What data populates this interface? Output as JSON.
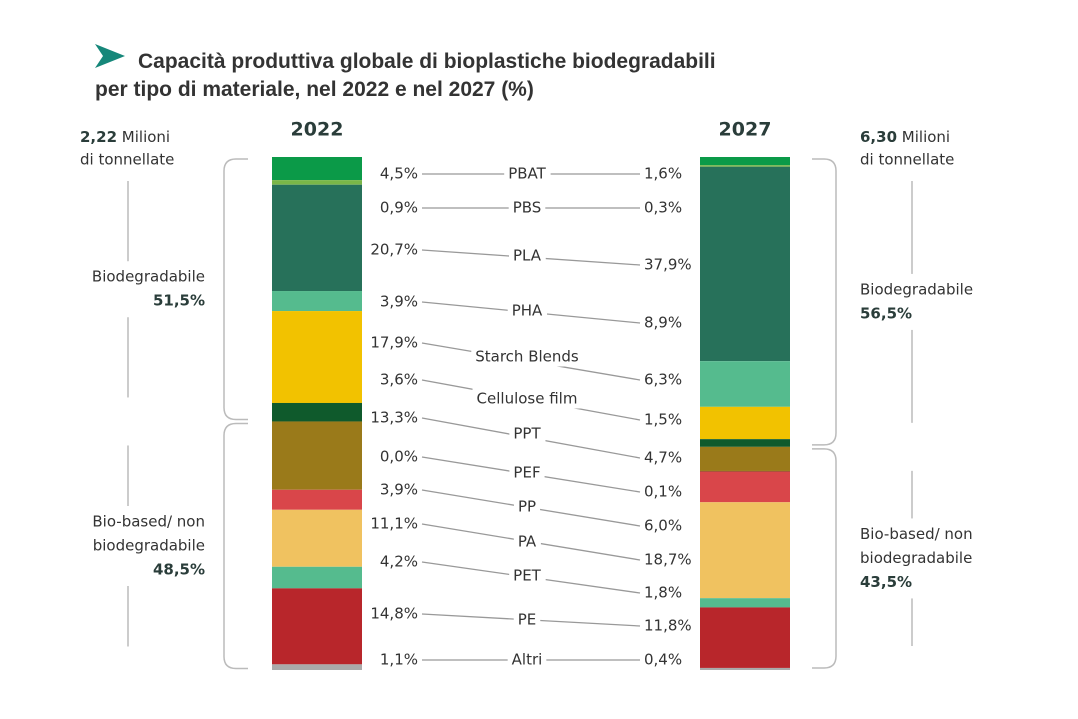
{
  "chart_data": {
    "type": "stacked_bar",
    "title_parts": [
      {
        "text": "Capacità produttiva globale",
        "color": "#16877a"
      },
      {
        "text": " di bioplastiche biodegradabili",
        "color": "#222222"
      },
      {
        "text": "per tipo di materiale,",
        "color": "#16877a"
      },
      {
        "text": " nel 2022 e nel 2027 (%)",
        "color": "#222222"
      }
    ],
    "categories": [
      "2022",
      "2027"
    ],
    "totals": {
      "value_labels": [
        "2,22",
        "6,30"
      ],
      "values": [
        2.22,
        6.3
      ],
      "unit_lines": [
        "Milioni",
        "di tonnellate"
      ]
    },
    "groups": [
      {
        "name_lines": [
          "Biodegradabile"
        ],
        "values": [
          51.5,
          56.5
        ],
        "value_labels": [
          "51,5%",
          "56,5%"
        ]
      },
      {
        "name_lines": [
          "Bio-based/ non",
          "biodegradabile"
        ],
        "values": [
          48.5,
          43.5
        ],
        "value_labels": [
          "48,5%",
          "43,5%"
        ]
      }
    ],
    "series": [
      {
        "name": "PBAT",
        "color": "#0b9a48",
        "values": [
          4.5,
          1.6
        ],
        "value_labels": [
          "4,5%",
          "1,6%"
        ]
      },
      {
        "name": "PBS",
        "color": "#7ab648",
        "values": [
          0.9,
          0.3
        ],
        "value_labels": [
          "0,9%",
          "0,3%"
        ]
      },
      {
        "name": "PLA",
        "color": "#27715a",
        "values": [
          20.7,
          37.9
        ],
        "value_labels": [
          "20,7%",
          "37,9%"
        ]
      },
      {
        "name": "PHA",
        "color": "#55bb8e",
        "values": [
          3.9,
          8.9
        ],
        "value_labels": [
          "3,9%",
          "8,9%"
        ]
      },
      {
        "name": "Starch Blends",
        "color": "#f2c200",
        "values": [
          17.9,
          6.3
        ],
        "value_labels": [
          "17,9%",
          "6,3%"
        ]
      },
      {
        "name": "Cellulose film",
        "color": "#0f5a2c",
        "values": [
          3.6,
          1.5
        ],
        "value_labels": [
          "3,6%",
          "1,5%"
        ]
      },
      {
        "name": "PPT",
        "color": "#9a7a1a",
        "values": [
          13.3,
          4.7
        ],
        "value_labels": [
          "13,3%",
          "4,7%"
        ]
      },
      {
        "name": "PEF",
        "color": "#6b5a20",
        "values": [
          0.0,
          0.1
        ],
        "value_labels": [
          "0,0%",
          "0,1%"
        ]
      },
      {
        "name": "PP",
        "color": "#d9464a",
        "values": [
          3.9,
          6.0
        ],
        "value_labels": [
          "3,9%",
          "6,0%"
        ]
      },
      {
        "name": "PA",
        "color": "#f0c260",
        "values": [
          11.1,
          18.7
        ],
        "value_labels": [
          "11,1%",
          "18,7%"
        ]
      },
      {
        "name": "PET",
        "color": "#55bb8e",
        "values": [
          4.2,
          1.8
        ],
        "value_labels": [
          "4,2%",
          "1,8%"
        ]
      },
      {
        "name": "PE",
        "color": "#b8262b",
        "values": [
          14.8,
          11.8
        ],
        "value_labels": [
          "14,8%",
          "11,8%"
        ]
      },
      {
        "name": "Altri",
        "color": "#aaaaaa",
        "values": [
          1.1,
          0.4
        ],
        "value_labels": [
          "1,1%",
          "0,4%"
        ]
      }
    ]
  }
}
